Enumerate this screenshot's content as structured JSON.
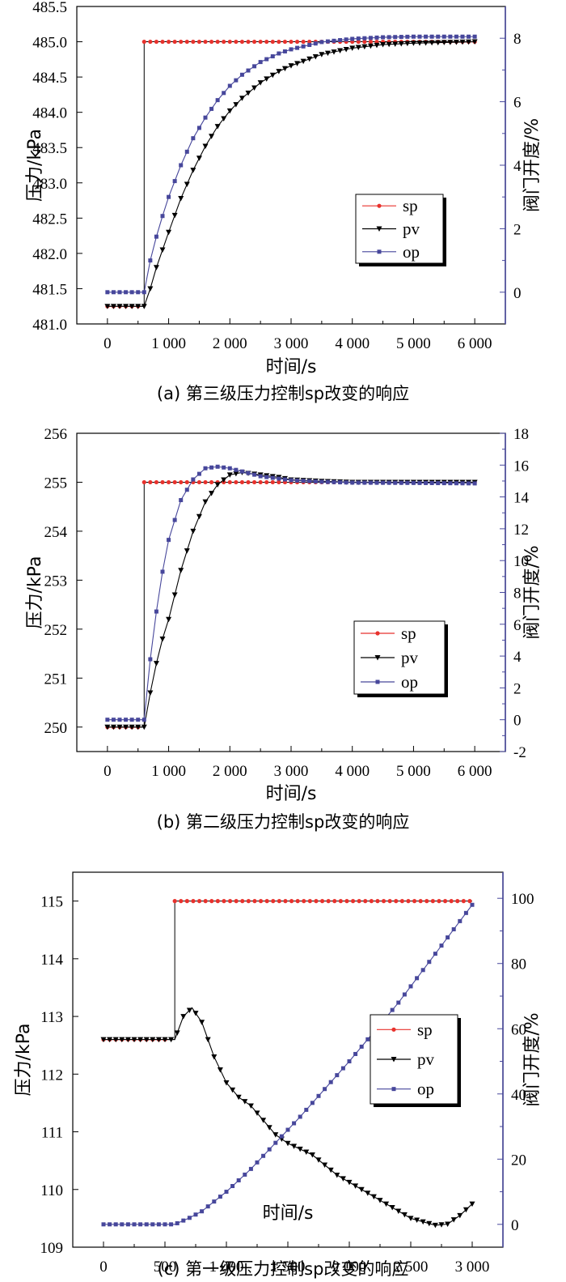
{
  "chart_data": [
    {
      "type": "line",
      "caption": "(a) 第三级压力控制sp改变的响应",
      "xlabel": "时间/s",
      "ylabel": "压力/kPa",
      "y2label": "阀门开度/%",
      "xlim": [
        -500,
        6500
      ],
      "ylim": [
        481.0,
        485.5
      ],
      "y2lim": [
        -1,
        9
      ],
      "xticks": [
        0,
        1000,
        2000,
        3000,
        4000,
        5000,
        6000
      ],
      "xtick_labels": [
        "0",
        "1 000",
        "2 000",
        "3 000",
        "4 000",
        "5 000",
        "6 000"
      ],
      "yticks": [
        481.0,
        481.5,
        482.0,
        482.5,
        483.0,
        483.5,
        484.0,
        484.5,
        485.0,
        485.5
      ],
      "ytick_labels": [
        "481.0",
        "481.5",
        "482.0",
        "482.5",
        "483.0",
        "483.5",
        "484.0",
        "484.5",
        "485.0",
        "485.5"
      ],
      "y2ticks": [
        0,
        2,
        4,
        6,
        8
      ],
      "y2tick_labels": [
        "0",
        "2",
        "4",
        "6",
        "8"
      ],
      "legend": {
        "position": "center-right",
        "entries": [
          "sp",
          "pv",
          "op"
        ]
      },
      "series": [
        {
          "name": "sp",
          "axis": "left",
          "marker": "circle",
          "color": "#e8322d",
          "step": true,
          "x": [
            0,
            100,
            200,
            300,
            400,
            500,
            600,
            6000
          ],
          "y": [
            481.25,
            481.25,
            481.25,
            481.25,
            481.25,
            481.25,
            485.0,
            485.0
          ]
        },
        {
          "name": "pv",
          "axis": "left",
          "marker": "triangle-down",
          "color": "#000000",
          "x": [
            0,
            300,
            600,
            700,
            800,
            900,
            1000,
            1200,
            1400,
            1600,
            1800,
            2000,
            2200,
            2500,
            2800,
            3000,
            3500,
            4000,
            4500,
            5000,
            5500,
            6000
          ],
          "y": [
            481.25,
            481.25,
            481.25,
            481.5,
            481.8,
            482.05,
            482.3,
            482.78,
            483.18,
            483.52,
            483.8,
            484.02,
            484.2,
            484.42,
            484.58,
            484.66,
            484.82,
            484.91,
            484.96,
            484.98,
            484.99,
            485.0
          ]
        },
        {
          "name": "op",
          "axis": "right",
          "marker": "square",
          "color": "#47479b",
          "x": [
            0,
            300,
            600,
            700,
            800,
            900,
            1000,
            1200,
            1400,
            1600,
            1800,
            2000,
            2200,
            2500,
            2800,
            3000,
            3500,
            4000,
            4500,
            5000,
            5500,
            6000
          ],
          "y": [
            0.0,
            0.0,
            0.0,
            1.0,
            1.75,
            2.4,
            3.0,
            4.0,
            4.85,
            5.5,
            6.05,
            6.5,
            6.85,
            7.25,
            7.52,
            7.65,
            7.88,
            7.98,
            8.03,
            8.05,
            8.05,
            8.05
          ]
        }
      ]
    },
    {
      "type": "line",
      "caption": "(b) 第二级压力控制sp改变的响应",
      "xlabel": "时间/s",
      "ylabel": "压力/kPa",
      "y2label": "阀门开度/%",
      "xlim": [
        -500,
        6500
      ],
      "ylim": [
        249.5,
        256
      ],
      "y2lim": [
        -2,
        18
      ],
      "xticks": [
        0,
        1000,
        2000,
        3000,
        4000,
        5000,
        6000
      ],
      "xtick_labels": [
        "0",
        "1 000",
        "2 000",
        "3 000",
        "4 000",
        "5 000",
        "6 000"
      ],
      "yticks": [
        250,
        251,
        252,
        253,
        254,
        255,
        256
      ],
      "ytick_labels": [
        "250",
        "251",
        "252",
        "253",
        "254",
        "255",
        "256"
      ],
      "y2ticks": [
        -2,
        0,
        2,
        4,
        6,
        8,
        10,
        12,
        14,
        16,
        18
      ],
      "y2tick_labels": [
        "-2",
        "0",
        "2",
        "4",
        "6",
        "8",
        "10",
        "12",
        "14",
        "16",
        "18"
      ],
      "legend": {
        "position": "center-right",
        "entries": [
          "sp",
          "pv",
          "op"
        ]
      },
      "series": [
        {
          "name": "sp",
          "axis": "left",
          "marker": "circle",
          "color": "#e8322d",
          "step": true,
          "x": [
            0,
            100,
            200,
            300,
            400,
            500,
            600,
            6000
          ],
          "y": [
            250.0,
            250.0,
            250.0,
            250.0,
            250.0,
            250.0,
            255.0,
            255.0
          ]
        },
        {
          "name": "pv",
          "axis": "left",
          "marker": "triangle-down",
          "color": "#000000",
          "x": [
            0,
            300,
            600,
            700,
            800,
            900,
            1000,
            1200,
            1400,
            1600,
            1800,
            2000,
            2200,
            2500,
            2800,
            3000,
            3500,
            4000,
            5000,
            6000
          ],
          "y": [
            250.0,
            250.0,
            250.0,
            250.7,
            251.3,
            251.8,
            252.2,
            253.2,
            254.0,
            254.6,
            254.95,
            255.15,
            255.2,
            255.15,
            255.1,
            255.05,
            255.02,
            255.0,
            255.0,
            255.0
          ]
        },
        {
          "name": "op",
          "axis": "right",
          "marker": "square",
          "color": "#47479b",
          "x": [
            0,
            300,
            600,
            700,
            800,
            900,
            1000,
            1200,
            1400,
            1600,
            1800,
            2000,
            2200,
            2500,
            2800,
            3000,
            3500,
            4000,
            5000,
            6000
          ],
          "y": [
            0.0,
            0.0,
            0.0,
            3.8,
            6.8,
            9.3,
            11.3,
            13.8,
            15.1,
            15.8,
            15.9,
            15.8,
            15.6,
            15.3,
            15.15,
            15.05,
            14.95,
            14.9,
            14.88,
            14.85
          ]
        }
      ]
    },
    {
      "type": "line",
      "caption": "(c) 第一级压力控制sp改变的响应",
      "xlabel": "时间/s",
      "ylabel": "压力/kPa",
      "y2label": "阀门开度/%",
      "xlim": [
        -250,
        3250
      ],
      "ylim": [
        109,
        115.5
      ],
      "y2lim": [
        -7,
        108
      ],
      "xticks": [
        0,
        500,
        1000,
        1500,
        2000,
        2500,
        3000
      ],
      "xtick_labels": [
        "0",
        "500",
        "1 000",
        "1 500",
        "2 000",
        "2 500",
        "3 000"
      ],
      "yticks": [
        109,
        110,
        111,
        112,
        113,
        114,
        115
      ],
      "ytick_labels": [
        "109",
        "110",
        "111",
        "112",
        "113",
        "114",
        "115"
      ],
      "y2ticks": [
        0,
        20,
        40,
        60,
        80,
        100
      ],
      "y2tick_labels": [
        "0",
        "20",
        "40",
        "60",
        "80",
        "100"
      ],
      "legend": {
        "position": "center-right",
        "entries": [
          "sp",
          "pv",
          "op"
        ]
      },
      "series": [
        {
          "name": "sp",
          "axis": "left",
          "marker": "circle",
          "color": "#e8322d",
          "step": true,
          "x": [
            0,
            100,
            200,
            300,
            400,
            500,
            580,
            3000
          ],
          "y": [
            112.6,
            112.6,
            112.6,
            112.6,
            112.6,
            112.6,
            115.0,
            115.0
          ]
        },
        {
          "name": "pv",
          "axis": "left",
          "marker": "triangle-down",
          "color": "#000000",
          "x": [
            0,
            300,
            580,
            650,
            720,
            800,
            900,
            1000,
            1100,
            1200,
            1300,
            1400,
            1500,
            1700,
            1900,
            2100,
            2300,
            2500,
            2700,
            2800,
            2900,
            3000
          ],
          "y": [
            112.6,
            112.6,
            112.6,
            113.0,
            113.15,
            112.9,
            112.3,
            111.85,
            111.6,
            111.45,
            111.2,
            110.95,
            110.8,
            110.6,
            110.25,
            110.0,
            109.75,
            109.5,
            109.38,
            109.4,
            109.55,
            109.75
          ]
        },
        {
          "name": "op",
          "axis": "right",
          "marker": "square",
          "color": "#47479b",
          "x": [
            0,
            300,
            580,
            700,
            800,
            1000,
            1200,
            1400,
            1600,
            1800,
            2000,
            2200,
            2400,
            2600,
            2800,
            3000
          ],
          "y": [
            0.0,
            0.0,
            0.0,
            2.0,
            4.0,
            10.0,
            17.0,
            25.0,
            33.0,
            41.5,
            50.0,
            59.0,
            68.0,
            78.0,
            88.0,
            98.0
          ]
        }
      ]
    }
  ]
}
